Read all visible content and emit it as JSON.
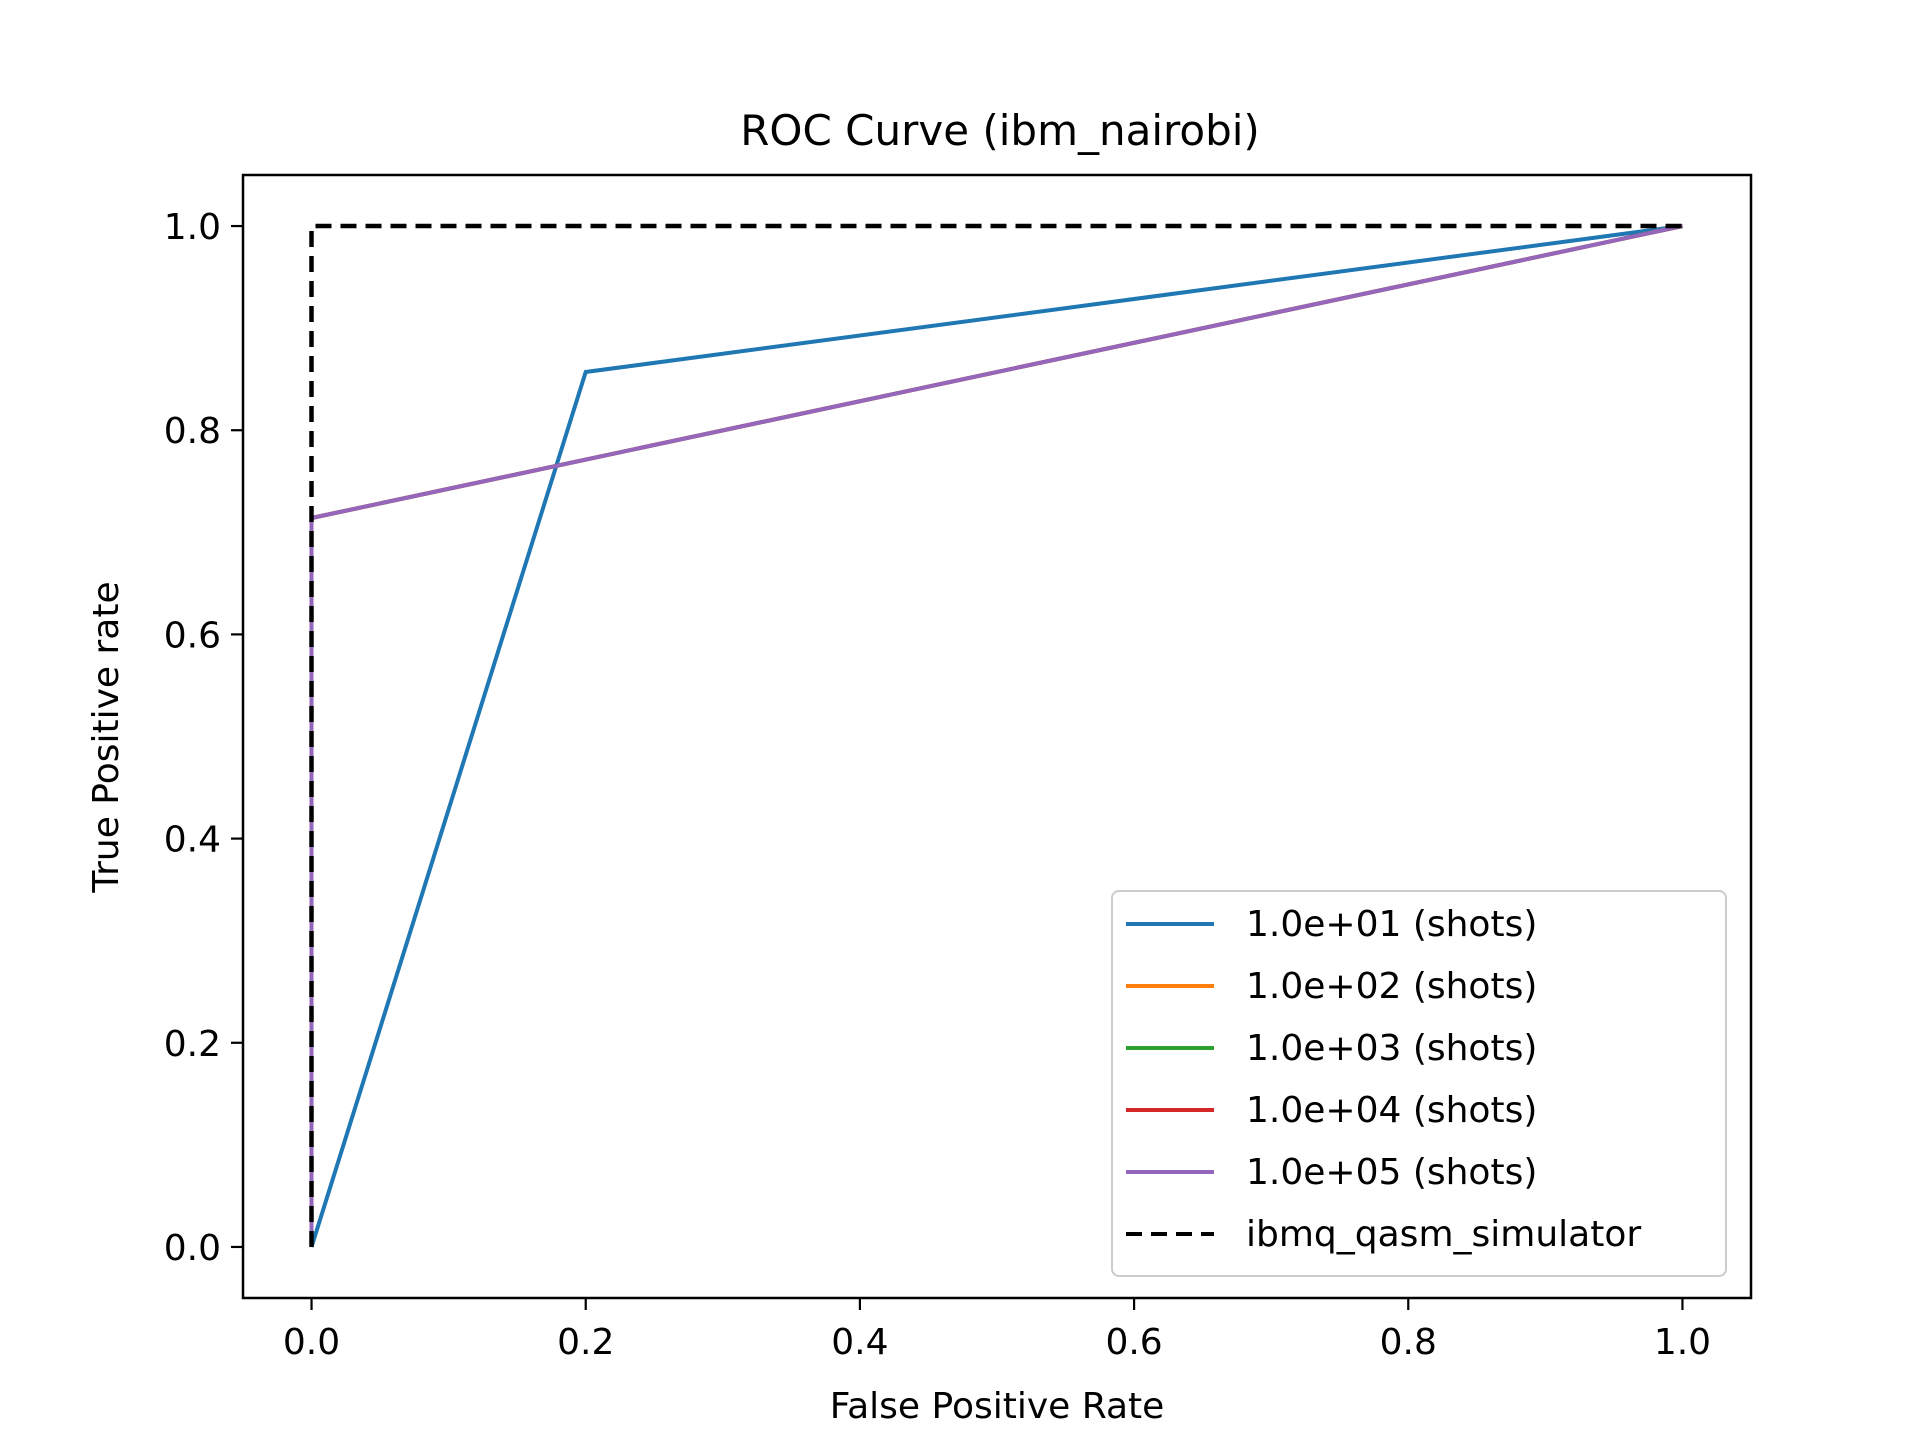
{
  "chart_data": {
    "type": "line",
    "title": "ROC Curve (ibm_nairobi)",
    "xlabel": "False Positive Rate",
    "ylabel": "True Positive rate",
    "xlim": [
      -0.05,
      1.05
    ],
    "ylim": [
      -0.05,
      1.05
    ],
    "xticks": [
      0.0,
      0.2,
      0.4,
      0.6,
      0.8,
      1.0
    ],
    "yticks": [
      0.0,
      0.2,
      0.4,
      0.6,
      0.8,
      1.0
    ],
    "xtick_labels": [
      "0.0",
      "0.2",
      "0.4",
      "0.6",
      "0.8",
      "1.0"
    ],
    "ytick_labels": [
      "0.0",
      "0.2",
      "0.4",
      "0.6",
      "0.8",
      "1.0"
    ],
    "grid": false,
    "legend_position": "lower-right",
    "series": [
      {
        "name": "1.0e+01 (shots)",
        "color": "#1f77b4",
        "dash": "solid",
        "x": [
          0.0,
          0.2,
          1.0
        ],
        "y": [
          0.0,
          0.857,
          1.0
        ]
      },
      {
        "name": "1.0e+02 (shots)",
        "color": "#ff7f0e",
        "dash": "solid",
        "x": [
          0.0,
          0.0,
          1.0
        ],
        "y": [
          0.0,
          0.714,
          1.0
        ]
      },
      {
        "name": "1.0e+03 (shots)",
        "color": "#2ca02c",
        "dash": "solid",
        "x": [
          0.0,
          0.0,
          1.0
        ],
        "y": [
          0.0,
          0.714,
          1.0
        ]
      },
      {
        "name": "1.0e+04 (shots)",
        "color": "#d62728",
        "dash": "solid",
        "x": [
          0.0,
          0.0,
          1.0
        ],
        "y": [
          0.0,
          0.714,
          1.0
        ]
      },
      {
        "name": "1.0e+05 (shots)",
        "color": "#9467bd",
        "dash": "solid",
        "x": [
          0.0,
          0.0,
          1.0
        ],
        "y": [
          0.0,
          0.714,
          1.0
        ]
      },
      {
        "name": "ibmq_qasm_simulator",
        "color": "#000000",
        "dash": "dashed",
        "x": [
          0.0,
          0.0,
          1.0
        ],
        "y": [
          0.0,
          1.0,
          1.0
        ]
      }
    ]
  }
}
